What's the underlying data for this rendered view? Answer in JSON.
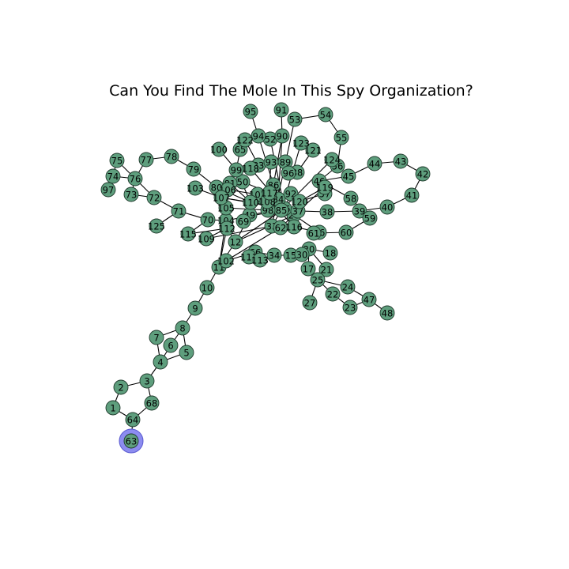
{
  "title": "Can You Find The Mole In This Spy Organization?",
  "colors": {
    "node": "#5e9e7d",
    "node_stroke": "#1f3a2c",
    "highlight": "#8c8cf0",
    "edge": "#000000"
  },
  "highlighted_node": "63",
  "nodes": [
    "1",
    "2",
    "3",
    "4",
    "5",
    "6",
    "7",
    "8",
    "9",
    "10",
    "11",
    "12",
    "15",
    "17",
    "18",
    "20",
    "21",
    "22",
    "23",
    "24",
    "25",
    "26",
    "27",
    "28",
    "30",
    "33",
    "34",
    "35",
    "36",
    "37",
    "38",
    "39",
    "40",
    "41",
    "42",
    "43",
    "44",
    "45",
    "46",
    "47",
    "48",
    "49",
    "50",
    "52",
    "53",
    "54",
    "55",
    "56",
    "57",
    "58",
    "59",
    "60",
    "61",
    "62",
    "63",
    "64",
    "65",
    "66",
    "67",
    "68",
    "69",
    "70",
    "71",
    "72",
    "73",
    "74",
    "75",
    "76",
    "77",
    "78",
    "79",
    "80",
    "81",
    "83",
    "84",
    "85",
    "86",
    "88",
    "89",
    "90",
    "91",
    "92",
    "93",
    "94",
    "95",
    "96",
    "97",
    "98",
    "99",
    "100",
    "101",
    "102",
    "103",
    "104",
    "105",
    "106",
    "107",
    "108",
    "109",
    "110",
    "111",
    "112",
    "113",
    "115",
    "116",
    "117",
    "118",
    "119",
    "120",
    "121",
    "122",
    "123",
    "124",
    "125"
  ]
}
